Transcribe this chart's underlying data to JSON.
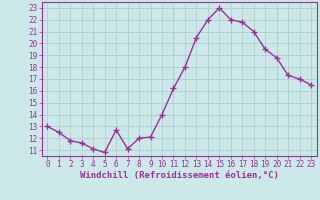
{
  "x": [
    0,
    1,
    2,
    3,
    4,
    5,
    6,
    7,
    8,
    9,
    10,
    11,
    12,
    13,
    14,
    15,
    16,
    17,
    18,
    19,
    20,
    21,
    22,
    23
  ],
  "y": [
    13.0,
    12.5,
    11.8,
    11.6,
    11.1,
    10.8,
    12.7,
    11.1,
    12.0,
    12.1,
    14.0,
    16.2,
    18.0,
    20.5,
    22.0,
    23.0,
    22.0,
    21.8,
    21.0,
    19.5,
    18.8,
    17.3,
    17.0,
    16.5
  ],
  "line_color": "#993399",
  "marker": "+",
  "marker_size": 4,
  "xlabel": "Windchill (Refroidissement éolien,°C)",
  "xlim": [
    -0.5,
    23.5
  ],
  "ylim": [
    10.5,
    23.5
  ],
  "yticks": [
    11,
    12,
    13,
    14,
    15,
    16,
    17,
    18,
    19,
    20,
    21,
    22,
    23
  ],
  "xticks": [
    0,
    1,
    2,
    3,
    4,
    5,
    6,
    7,
    8,
    9,
    10,
    11,
    12,
    13,
    14,
    15,
    16,
    17,
    18,
    19,
    20,
    21,
    22,
    23
  ],
  "bg_color": "#cce8e8",
  "grid_color": "#b0d0d0",
  "label_color": "#993399",
  "tick_color": "#993399",
  "axis_color": "#993399",
  "tick_fontsize": 5.5,
  "xlabel_fontsize": 6.5
}
